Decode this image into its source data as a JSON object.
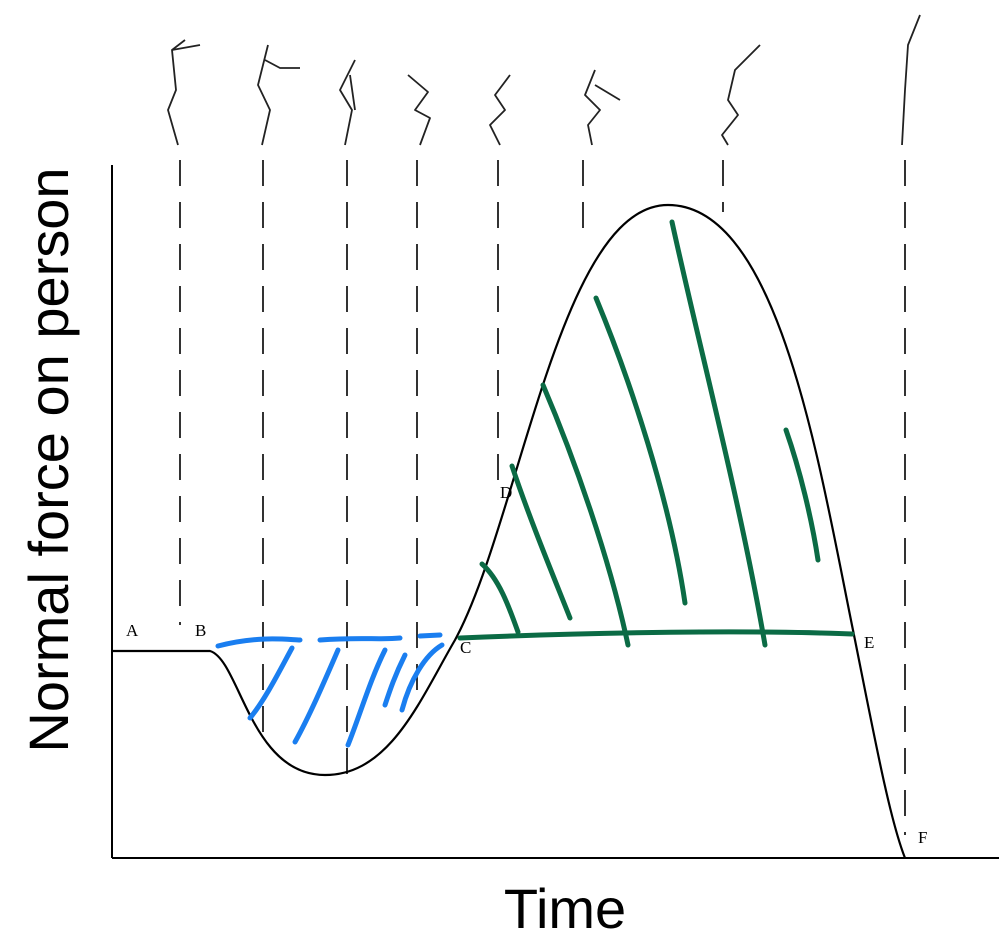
{
  "axes": {
    "y_label": "Normal force on person",
    "x_label": "Time"
  },
  "points": [
    {
      "label": "A"
    },
    {
      "label": "B"
    },
    {
      "label": "C"
    },
    {
      "label": "D"
    },
    {
      "label": "E"
    },
    {
      "label": "F"
    }
  ]
}
